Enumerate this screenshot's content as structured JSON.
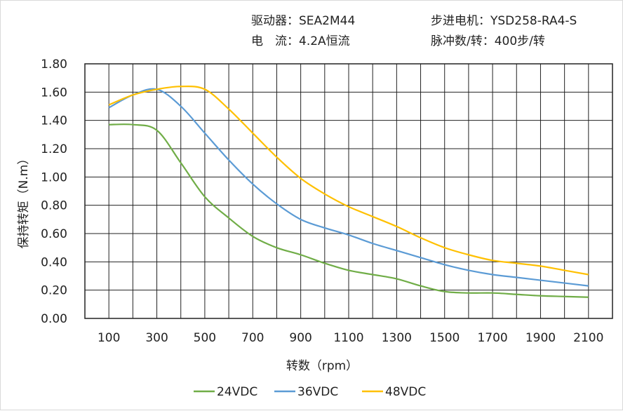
{
  "header": {
    "driver": "驱动器：SEA2M44",
    "motor": "步进电机：YSD258-RA4-S",
    "current": "电　流：4.2A恒流",
    "pulses": "脉冲数/转：400步/转"
  },
  "chart_data": {
    "type": "line",
    "title": "",
    "xlabel": "转数（rpm）",
    "ylabel": "保持转矩（N.m）",
    "xlim": [
      0,
      2200
    ],
    "ylim": [
      0,
      1.8
    ],
    "grid": true,
    "legend_position": "bottom",
    "xticks": [
      100,
      300,
      500,
      700,
      900,
      1100,
      1300,
      1500,
      1700,
      1900,
      2100
    ],
    "yticks": [
      "0.00",
      "0.20",
      "0.40",
      "0.60",
      "0.80",
      "1.00",
      "1.20",
      "1.40",
      "1.60",
      "1.80"
    ],
    "x": [
      100,
      200,
      300,
      400,
      500,
      600,
      700,
      800,
      900,
      1000,
      1100,
      1200,
      1300,
      1400,
      1500,
      1600,
      1700,
      1800,
      1900,
      2000,
      2100
    ],
    "series": [
      {
        "name": "24VDC",
        "color": "#70ad47",
        "values": [
          1.37,
          1.37,
          1.33,
          1.1,
          0.86,
          0.71,
          0.58,
          0.5,
          0.45,
          0.39,
          0.34,
          0.31,
          0.28,
          0.23,
          0.19,
          0.18,
          0.18,
          0.17,
          0.16,
          0.155,
          0.15
        ]
      },
      {
        "name": "36VDC",
        "color": "#5b9bd5",
        "values": [
          1.49,
          1.58,
          1.62,
          1.5,
          1.31,
          1.12,
          0.95,
          0.81,
          0.7,
          0.64,
          0.59,
          0.53,
          0.48,
          0.43,
          0.38,
          0.34,
          0.31,
          0.29,
          0.27,
          0.25,
          0.23
        ]
      },
      {
        "name": "48VDC",
        "color": "#ffc000",
        "values": [
          1.51,
          1.58,
          1.62,
          1.64,
          1.62,
          1.48,
          1.31,
          1.14,
          0.99,
          0.88,
          0.79,
          0.72,
          0.65,
          0.57,
          0.5,
          0.45,
          0.41,
          0.39,
          0.37,
          0.34,
          0.31
        ]
      }
    ]
  }
}
